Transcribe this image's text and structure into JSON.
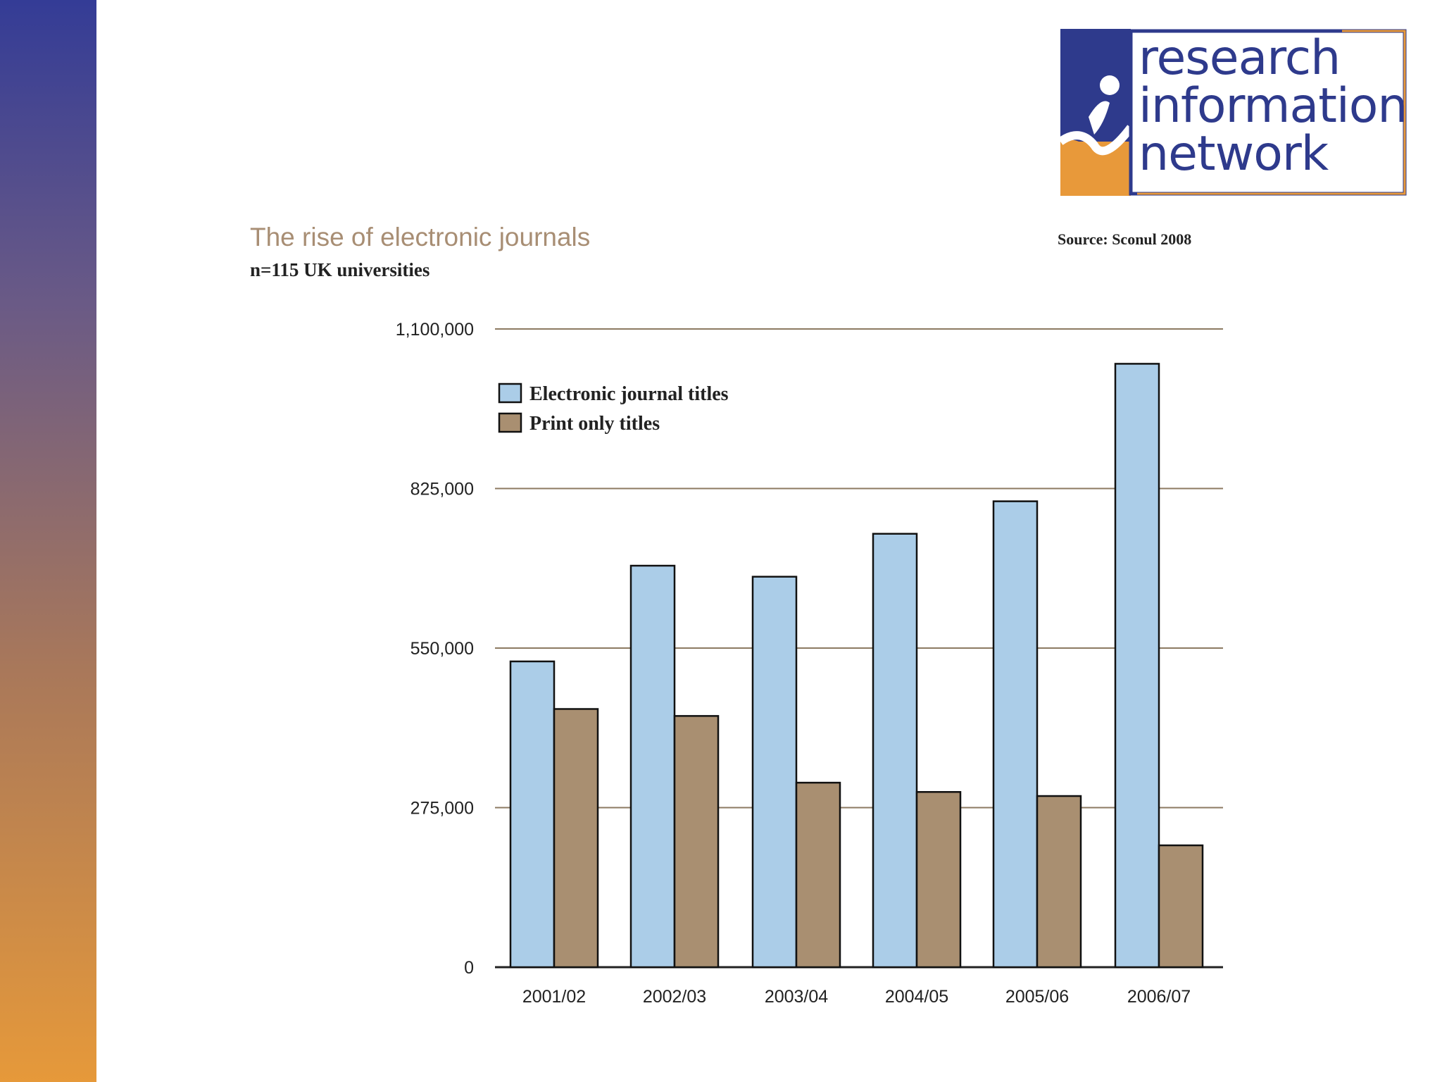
{
  "logo": {
    "lines": [
      "research",
      "information",
      "network"
    ],
    "colors": {
      "blue": "#2e3a8c",
      "orange": "#e8993a"
    }
  },
  "chart_data": {
    "type": "bar",
    "title": "The rise of electronic journals",
    "subtitle": "n=115 UK universities",
    "source": "Source: Sconul 2008",
    "categories": [
      "2001/02",
      "2002/03",
      "2003/04",
      "2004/05",
      "2005/06",
      "2006/07"
    ],
    "series": [
      {
        "name": "Electronic journal titles",
        "color": "#abcde8",
        "values": [
          527000,
          692000,
          673000,
          747000,
          803000,
          1040000
        ]
      },
      {
        "name": "Print only titles",
        "color": "#a98f71",
        "values": [
          445000,
          433000,
          318000,
          302000,
          295000,
          210000
        ]
      }
    ],
    "yticks": [
      0,
      275000,
      550000,
      825000,
      1100000
    ],
    "ytick_labels": [
      "0",
      "275,000",
      "550,000",
      "825,000",
      "1,100,000"
    ],
    "ylim": [
      0,
      1100000
    ],
    "grid": true,
    "legend_position": "top-left"
  }
}
